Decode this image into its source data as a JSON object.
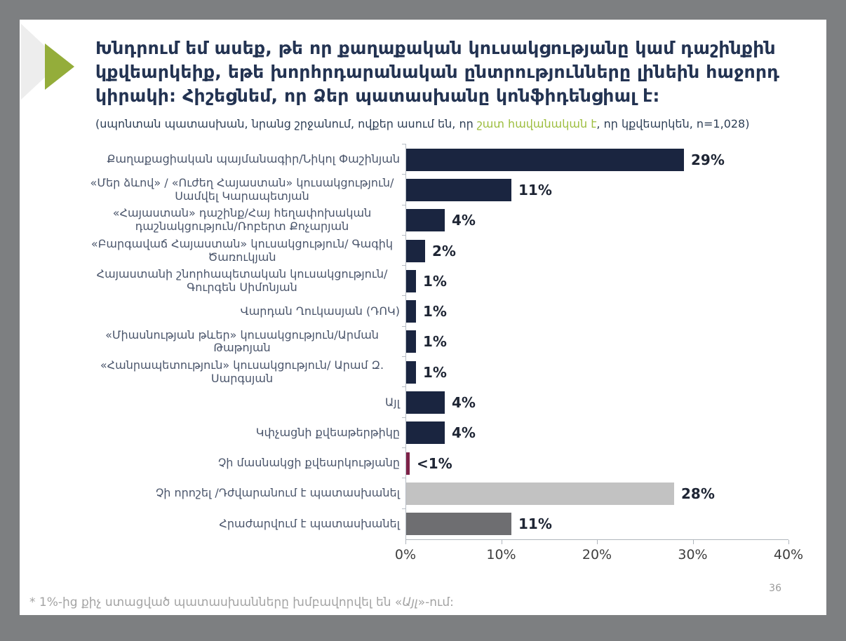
{
  "header": {
    "title": "Խնդրում եմ ասեք, թե որ քաղաքական կուսակցությանը կամ դաշինքին կքվեարկեիք, եթե խորհրդարանական ընտրությունները լինեին հաջորդ կիրակի: Հիշեցնեմ, որ Ձեր պատասխանը կոնֆիդենցիալ է:",
    "subtitle_prefix": "(սպոնտան պատասխան, նրանց շրջանում, ովքեր ասում են, որ ",
    "subtitle_highlight": "շատ հավանական է",
    "subtitle_suffix": ", որ կքվեարկեն, n=1,028)"
  },
  "footnote": {
    "prefix": "* 1%-ից քիչ ստացված պատասխանները խմբավորվել են «",
    "italic": "Այլ",
    "suffix": "»-ում:"
  },
  "page_number": "36",
  "colors": {
    "bar_navy": "#1a2540",
    "bar_maroon": "#7d2248",
    "bar_lightgray": "#c2c2c2",
    "bar_darkgray": "#6e6e71",
    "accent_green": "#94ad3a",
    "accent_gray": "#ededed",
    "highlight_green": "#9dbe3f",
    "frame_gray": "#7d7f81"
  },
  "chart_data": {
    "type": "bar",
    "orientation": "horizontal",
    "title": "",
    "xlabel": "",
    "ylabel": "",
    "xlim": [
      0,
      40
    ],
    "x_ticks": [
      "0%",
      "10%",
      "20%",
      "30%",
      "40%"
    ],
    "grid": false,
    "legend": false,
    "categories": [
      "Քաղաքացիական պայմանագիր/Նիկոլ Փաշինյան",
      "«Մեր ձևով» / «Ուժեղ Հայաստան» կուսակցություն/Սամվել Կարապետյան",
      "«Հայաստան» դաշինք/Հայ հեղափոխական դաշնակցություն/Ռոբերտ Քոչարյան",
      "«Բարգավաճ Հայաստան» կուսակցություն/ Գագիկ Ծառուկյան",
      "Հայաստանի շնորհապետական կուսակցություն/Գուրգեն Սիմոնյան",
      "Վարդան Ղուկասյան (ԴՈԿ)",
      "«Միասնության թևեր» կուսակցություն/Արման Թաթոյան",
      "«Հանրապետություն» կուսակցություն/ Արամ Զ. Սարգսյան",
      "Այլ",
      "Կփչացնի քվեաթերթիկը",
      "Չի մասնակցի քվեարկությանը",
      "Չի որոշել /Դժվարանում է պատասխանել",
      "Հրաժարվում է պատասխանել"
    ],
    "values": [
      29,
      11,
      4,
      2,
      1,
      1,
      1,
      1,
      4,
      4,
      0.4,
      28,
      11
    ],
    "value_labels": [
      "29%",
      "11%",
      "4%",
      "2%",
      "1%",
      "1%",
      "1%",
      "1%",
      "4%",
      "4%",
      "<1%",
      "28%",
      "11%"
    ],
    "bar_colors": [
      "#1a2540",
      "#1a2540",
      "#1a2540",
      "#1a2540",
      "#1a2540",
      "#1a2540",
      "#1a2540",
      "#1a2540",
      "#1a2540",
      "#1a2540",
      "#7d2248",
      "#c2c2c2",
      "#6e6e71"
    ]
  }
}
